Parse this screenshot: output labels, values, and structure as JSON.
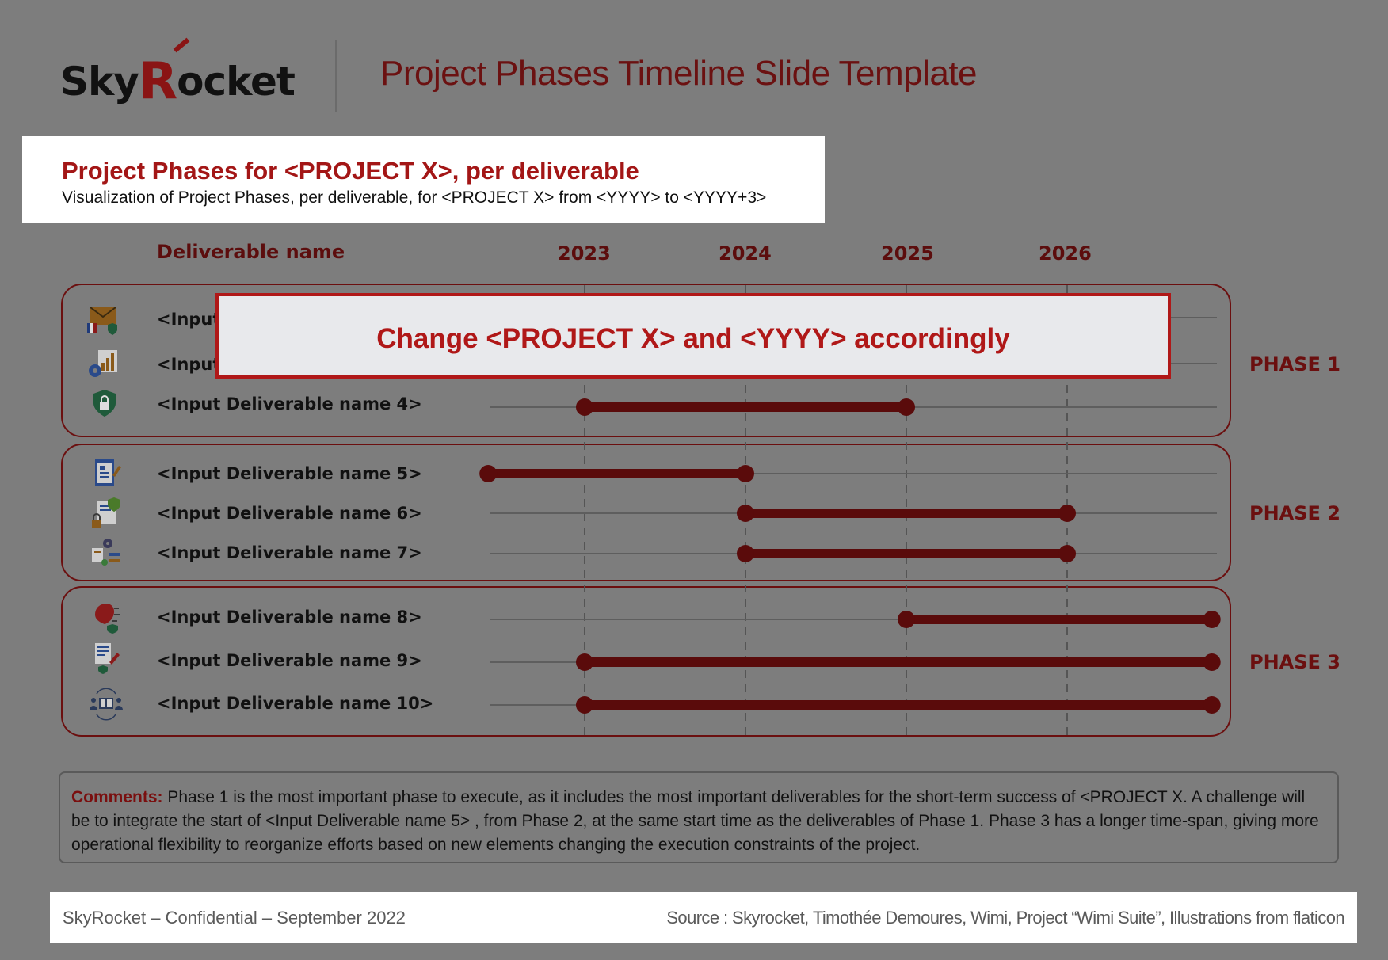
{
  "header": {
    "logo_text_sky": "Sky",
    "logo_text_r": "R",
    "logo_text_rest": "ocket",
    "title": "Project Phases Timeline Slide Template"
  },
  "subtitle_box": {
    "title": "Project Phases for <PROJECT X>, per deliverable",
    "text": "Visualization of Project Phases, per deliverable, for <PROJECT X> from <YYYY> to <YYYY+3>"
  },
  "columns": {
    "deliverable_header": "Deliverable name",
    "years": [
      "2023",
      "2024",
      "2025",
      "2026"
    ]
  },
  "overlay": {
    "text": "Change <PROJECT X> and <YYYY> accordingly"
  },
  "phases": [
    {
      "label": "PHASE 1"
    },
    {
      "label": "PHASE 2"
    },
    {
      "label": "PHASE 3"
    }
  ],
  "deliverables": [
    {
      "label": "<Input",
      "phase": 1,
      "icon": "mail-shield-icon",
      "start": null,
      "end": null
    },
    {
      "label": "<Input",
      "phase": 1,
      "icon": "analytics-gear-icon",
      "start": null,
      "end": null
    },
    {
      "label": "<Input Deliverable name 4>",
      "phase": 1,
      "icon": "security-shield-icon",
      "start": 2023.0,
      "end": 2025.0
    },
    {
      "label": "<Input Deliverable name 5>",
      "phase": 2,
      "icon": "document-sign-icon",
      "start": 2022.4,
      "end": 2024.0
    },
    {
      "label": "<Input Deliverable name 6>",
      "phase": 2,
      "icon": "secure-document-icon",
      "start": 2024.0,
      "end": 2026.0
    },
    {
      "label": "<Input Deliverable name 7>",
      "phase": 2,
      "icon": "settings-checklist-icon",
      "start": 2024.0,
      "end": 2026.0
    },
    {
      "label": "<Input Deliverable name 8>",
      "phase": 3,
      "icon": "brain-network-icon",
      "start": 2025.0,
      "end": 2026.9
    },
    {
      "label": "<Input Deliverable name 9>",
      "phase": 3,
      "icon": "document-edit-icon",
      "start": 2023.0,
      "end": 2026.9
    },
    {
      "label": "<Input Deliverable name 10>",
      "phase": 3,
      "icon": "collaboration-icon",
      "start": 2023.0,
      "end": 2026.9
    }
  ],
  "comments": {
    "label": "Comments:",
    "text": " Phase 1 is the most important phase to execute, as it includes the most important deliverables for the short-term success of <PROJECT X. A challenge will be to integrate the start of <Input Deliverable name 5> , from Phase 2, at the same start time as the deliverables of Phase 1. Phase 3 has a longer time-span, giving more operational flexibility to reorganize efforts based on new elements changing the execution constraints of the project."
  },
  "footer": {
    "left": "SkyRocket – Confidential – September 2022",
    "right": "Source : Skyrocket, Timothée Demoures, Wimi, Project “Wimi Suite”, Illustrations from flaticon"
  },
  "colors": {
    "accent": "#a31616",
    "bar": "#5a0b0b",
    "phase_border": "#6b0f0f",
    "background": "#7d7d7d"
  }
}
